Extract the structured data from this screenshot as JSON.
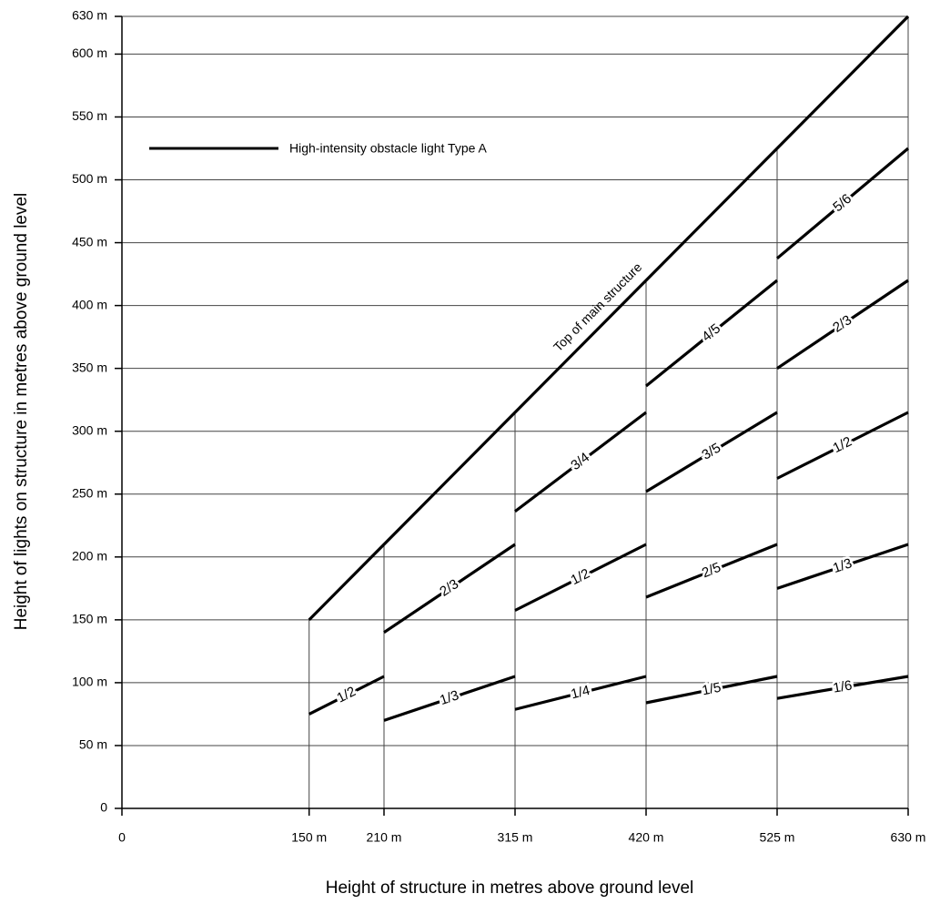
{
  "chart_data": {
    "type": "line",
    "title_x": "Height of structure in metres above ground level",
    "title_y": "Height of lights on structure in metres above ground level",
    "legend_label": "High-intensity obstacle light Type A",
    "color": "#000000",
    "xlim": [
      0,
      630
    ],
    "ylim": [
      0,
      630
    ],
    "xticks": [
      0,
      {
        "value": 150,
        "label": "150 m"
      },
      {
        "value": 210,
        "label": "210 m"
      },
      {
        "value": 315,
        "label": "315 m"
      },
      {
        "value": 420,
        "label": "420 m"
      },
      {
        "value": 525,
        "label": "525 m"
      },
      {
        "value": 630,
        "label": "630 m"
      }
    ],
    "yticks": [
      0,
      {
        "value": 50,
        "label": "50 m"
      },
      {
        "value": 100,
        "label": "100 m"
      },
      {
        "value": 150,
        "label": "150 m"
      },
      {
        "value": 200,
        "label": "200 m"
      },
      {
        "value": 250,
        "label": "250 m"
      },
      {
        "value": 300,
        "label": "300 m"
      },
      {
        "value": 350,
        "label": "350 m"
      },
      {
        "value": 400,
        "label": "400 m"
      },
      {
        "value": 450,
        "label": "450 m"
      },
      {
        "value": 500,
        "label": "500 m"
      },
      {
        "value": 550,
        "label": "550 m"
      },
      {
        "value": 600,
        "label": "600 m"
      },
      {
        "value": 630,
        "label": "630 m"
      }
    ],
    "grid": true,
    "series": [
      {
        "name": "Top of main structure",
        "x": [
          150,
          630
        ],
        "values": [
          150,
          630
        ]
      },
      {
        "name": "1/2",
        "x": [
          150,
          210
        ],
        "values": [
          75,
          105
        ]
      },
      {
        "name": "2/3",
        "x": [
          210,
          315
        ],
        "values": [
          140,
          210
        ]
      },
      {
        "name": "1/3",
        "x": [
          210,
          315
        ],
        "values": [
          70,
          105
        ]
      },
      {
        "name": "3/4",
        "x": [
          315,
          420
        ],
        "values": [
          236.25,
          315
        ]
      },
      {
        "name": "1/2",
        "x": [
          315,
          420
        ],
        "values": [
          157.5,
          210
        ]
      },
      {
        "name": "1/4",
        "x": [
          315,
          420
        ],
        "values": [
          78.75,
          105
        ]
      },
      {
        "name": "4/5",
        "x": [
          420,
          525
        ],
        "values": [
          336,
          420
        ]
      },
      {
        "name": "3/5",
        "x": [
          420,
          525
        ],
        "values": [
          252,
          315
        ]
      },
      {
        "name": "2/5",
        "x": [
          420,
          525
        ],
        "values": [
          168,
          210
        ]
      },
      {
        "name": "1/5",
        "x": [
          420,
          525
        ],
        "values": [
          84,
          105
        ]
      },
      {
        "name": "5/6",
        "x": [
          525,
          630
        ],
        "values": [
          437.5,
          525
        ]
      },
      {
        "name": "2/3",
        "x": [
          525,
          630
        ],
        "values": [
          350,
          420
        ]
      },
      {
        "name": "1/2",
        "x": [
          525,
          630
        ],
        "values": [
          262.5,
          315
        ]
      },
      {
        "name": "1/3",
        "x": [
          525,
          630
        ],
        "values": [
          175,
          210
        ]
      },
      {
        "name": "1/6",
        "x": [
          525,
          630
        ],
        "values": [
          87.5,
          105
        ]
      }
    ]
  }
}
